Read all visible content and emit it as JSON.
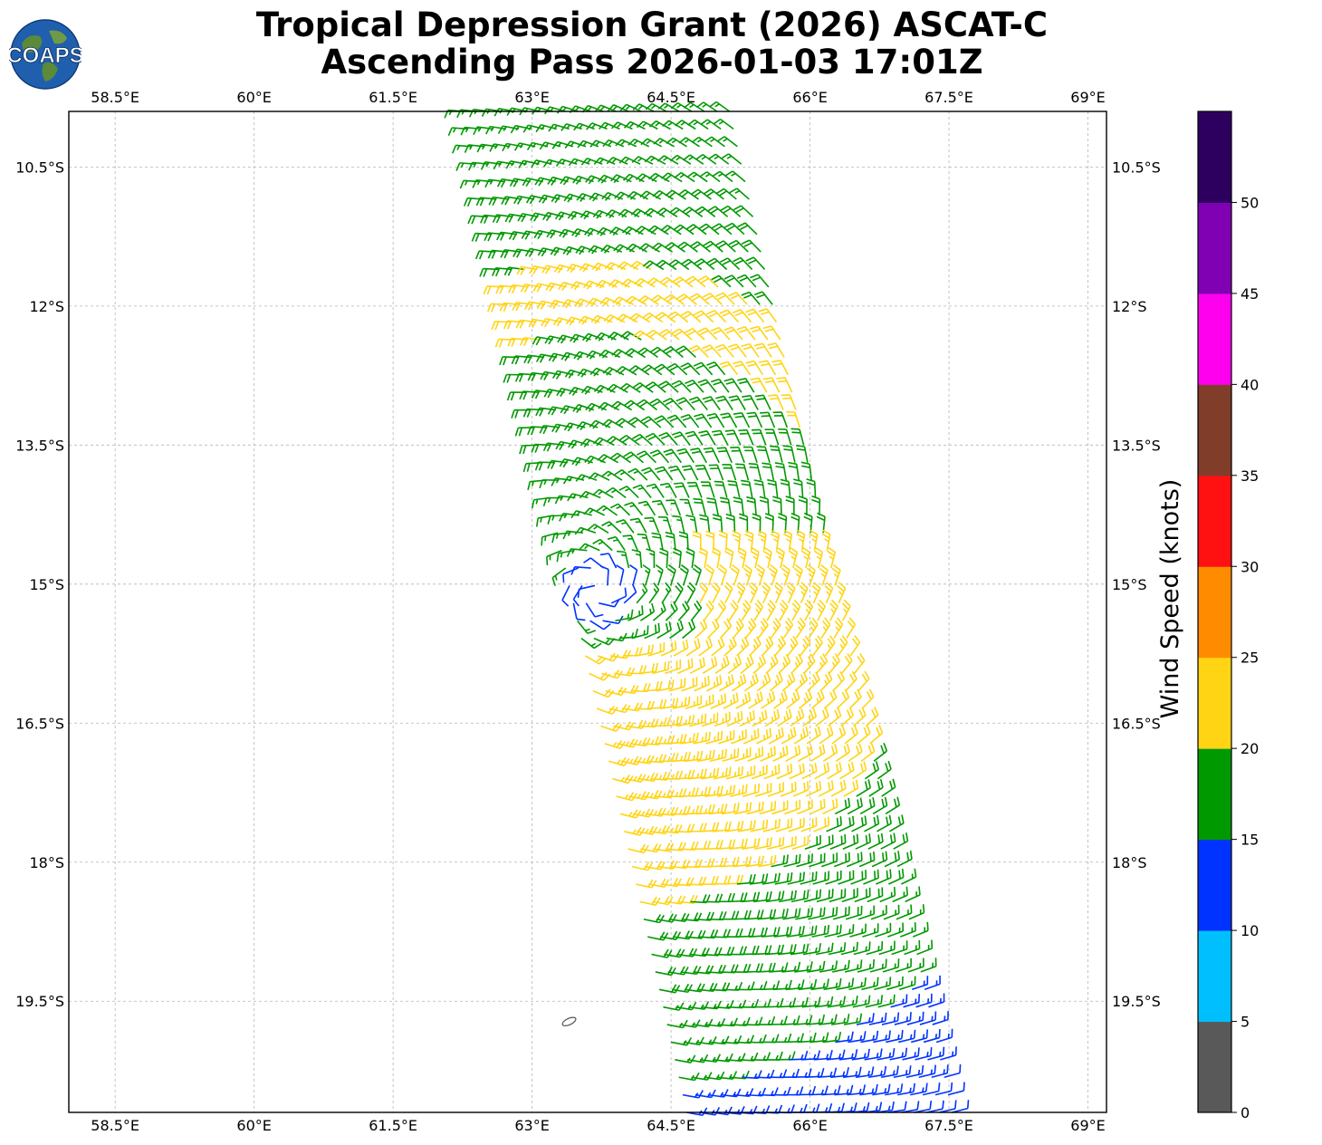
{
  "header": {
    "title_line1": "Tropical Depression Grant (2026) ASCAT-C",
    "title_line2": "Ascending Pass 2026-01-03 17:01Z",
    "logo_text": "COAPS"
  },
  "map": {
    "lon_ticks": [
      "58.5°E",
      "60°E",
      "61.5°E",
      "63°E",
      "64.5°E",
      "66°E",
      "67.5°E",
      "69°E"
    ],
    "lat_ticks": [
      "10.5°S",
      "12°S",
      "13.5°S",
      "15°S",
      "16.5°S",
      "18°S",
      "19.5°S"
    ],
    "lon_values": [
      58.5,
      60,
      61.5,
      63,
      64.5,
      66,
      67.5,
      69
    ],
    "lat_values": [
      -10.5,
      -12,
      -13.5,
      -15,
      -16.5,
      -18,
      -19.5
    ],
    "extent": {
      "lon_min": 58,
      "lon_max": 69.2,
      "lat_min": -20.7,
      "lat_max": -9.9
    },
    "gridlines": true,
    "storm_center": {
      "lon": 63.7,
      "lat": -15.05
    },
    "swath_corners": [
      [
        62.2,
        -9.9
      ],
      [
        65.2,
        -9.9
      ],
      [
        67.6,
        -20.7
      ],
      [
        64.6,
        -20.7
      ]
    ],
    "island": {
      "lon": 63.4,
      "lat": -19.72
    }
  },
  "colorbar": {
    "label": "Wind Speed (knots)",
    "tick_labels": [
      "0",
      "5",
      "10",
      "15",
      "20",
      "25",
      "30",
      "35",
      "40",
      "45",
      "50"
    ],
    "bins": [
      {
        "min": 0,
        "max": 5,
        "color": "#595959"
      },
      {
        "min": 5,
        "max": 10,
        "color": "#00bfff"
      },
      {
        "min": 10,
        "max": 15,
        "color": "#0033ff"
      },
      {
        "min": 15,
        "max": 20,
        "color": "#009900"
      },
      {
        "min": 20,
        "max": 25,
        "color": "#ffd414"
      },
      {
        "min": 25,
        "max": 30,
        "color": "#ff8c00"
      },
      {
        "min": 30,
        "max": 35,
        "color": "#ff1111"
      },
      {
        "min": 35,
        "max": 40,
        "color": "#803d2a"
      },
      {
        "min": 40,
        "max": 45,
        "color": "#ff00ee"
      },
      {
        "min": 45,
        "max": 50,
        "color": "#8000b3"
      },
      {
        "min": 50,
        "max": 55,
        "color": "#2d0060"
      }
    ]
  }
}
